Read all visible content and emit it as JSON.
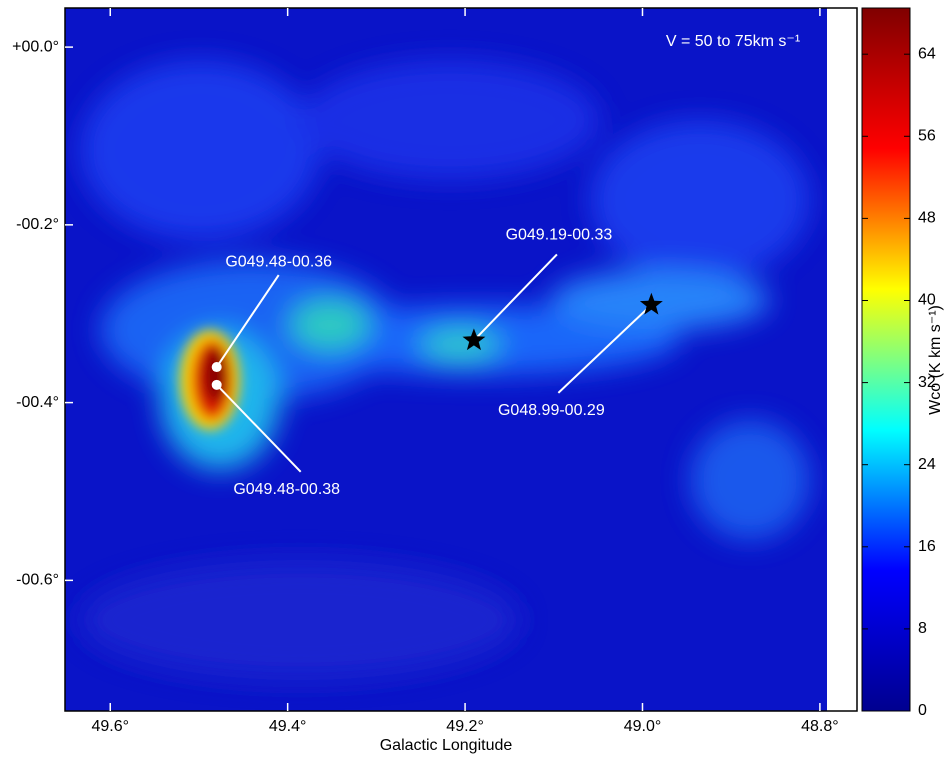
{
  "chart_data": {
    "type": "image",
    "annotation": "V = 50 to 75km s⁻¹",
    "xlabel": "Galactic Longitude",
    "xlim": [
      49.651,
      48.792
    ],
    "ylim": [
      -0.747,
      0.044
    ],
    "xticks": [
      {
        "value": 49.6,
        "label": "49.6°"
      },
      {
        "value": 49.4,
        "label": "49.4°"
      },
      {
        "value": 49.2,
        "label": "49.2°"
      },
      {
        "value": 49.0,
        "label": "49.0°"
      },
      {
        "value": 48.8,
        "label": "48.8°"
      }
    ],
    "yticks": [
      {
        "value": 0,
        "label": "+00.0°"
      },
      {
        "value": -0.2,
        "label": "-00.2°"
      },
      {
        "value": -0.4,
        "label": "-00.4°"
      },
      {
        "value": -0.6,
        "label": "-00.6°"
      }
    ],
    "colorbar": {
      "label": "Wco (K km s⁻¹)",
      "lim": [
        0,
        68.5
      ],
      "ticks": [
        0,
        8,
        16,
        24,
        32,
        40,
        48,
        56,
        64
      ],
      "colors": [
        "#00008f",
        "#0000ff",
        "#00ffff",
        "#ffff00",
        "#ff0000",
        "#800000"
      ]
    },
    "sources": [
      {
        "label": "G049.48-00.36",
        "x": 49.48,
        "y": -0.36,
        "marker": "circle"
      },
      {
        "label": "G049.48-00.38",
        "x": 49.48,
        "y": -0.38,
        "marker": "circle"
      },
      {
        "label": "G049.19-00.33",
        "x": 49.19,
        "y": -0.33,
        "marker": "star"
      },
      {
        "label": "G048.99-00.29",
        "x": 48.99,
        "y": -0.29,
        "marker": "star"
      }
    ]
  }
}
